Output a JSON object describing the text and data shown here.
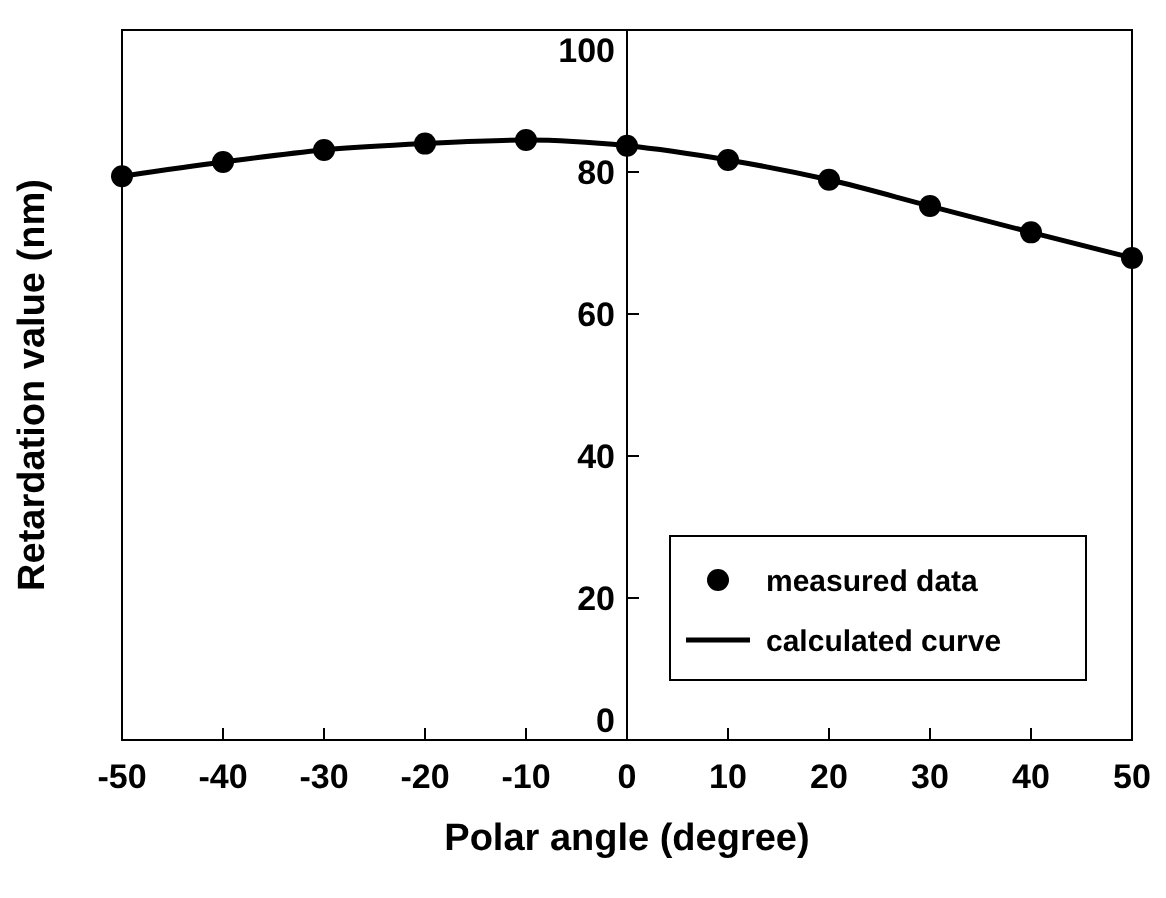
{
  "chart_data": {
    "type": "scatter",
    "xlabel": "Polar angle (degree)",
    "ylabel": "Retardation value (nm)",
    "x": [
      -50,
      -40,
      -30,
      -20,
      -10,
      0,
      10,
      20,
      30,
      40,
      50
    ],
    "series": [
      {
        "name": "measured data",
        "color": "#000000",
        "marker": "circle",
        "values": [
          79.4,
          81.4,
          83.1,
          84.0,
          84.5,
          83.7,
          81.7,
          78.9,
          75.2,
          71.5,
          67.9
        ]
      },
      {
        "name": "calculated curve",
        "type": "line",
        "color": "#000000",
        "marker": "none",
        "line_style": "solid",
        "values": [
          79.4,
          81.4,
          83.1,
          84.0,
          84.5,
          83.7,
          81.7,
          78.9,
          75.2,
          71.5,
          67.9
        ]
      }
    ],
    "xlim": [
      -50,
      50
    ],
    "xticks": [
      -50,
      -40,
      -30,
      -20,
      -10,
      0,
      10,
      20,
      30,
      40,
      50
    ],
    "ylim": [
      0,
      100
    ],
    "yticks": [
      0,
      20,
      40,
      60,
      80,
      100
    ],
    "grid": false,
    "legend": "right"
  }
}
